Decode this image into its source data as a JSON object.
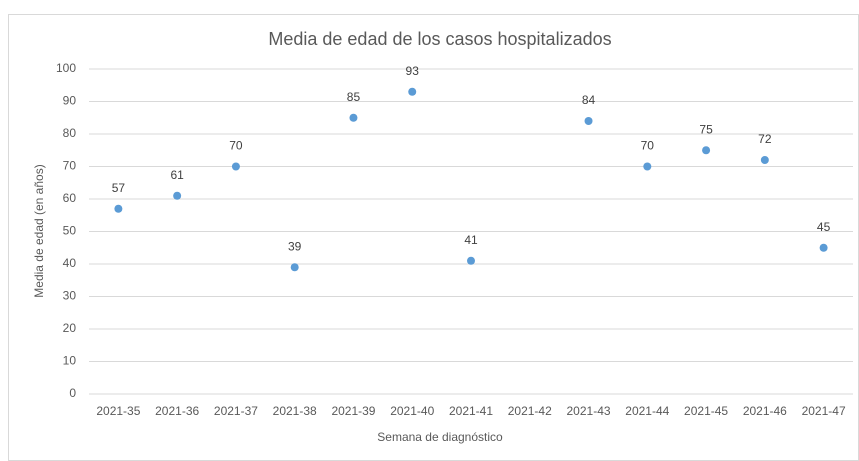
{
  "chart_data": {
    "type": "scatter",
    "title": "Media de edad de los casos hospitalizados",
    "x_label": "Semana de diagnóstico",
    "y_label": "Media de edad (en años)",
    "categories": [
      "2021-35",
      "2021-36",
      "2021-37",
      "2021-38",
      "2021-39",
      "2021-40",
      "2021-41",
      "2021-42",
      "2021-43",
      "2021-44",
      "2021-45",
      "2021-46",
      "2021-47"
    ],
    "values": [
      57,
      61,
      70,
      39,
      85,
      93,
      41,
      null,
      84,
      70,
      75,
      72,
      45
    ],
    "color": "#5b9bd5",
    "ylim": [
      0,
      100
    ],
    "yticks": [
      0,
      10,
      20,
      30,
      40,
      50,
      60,
      70,
      80,
      90,
      100
    ],
    "grid": true
  }
}
